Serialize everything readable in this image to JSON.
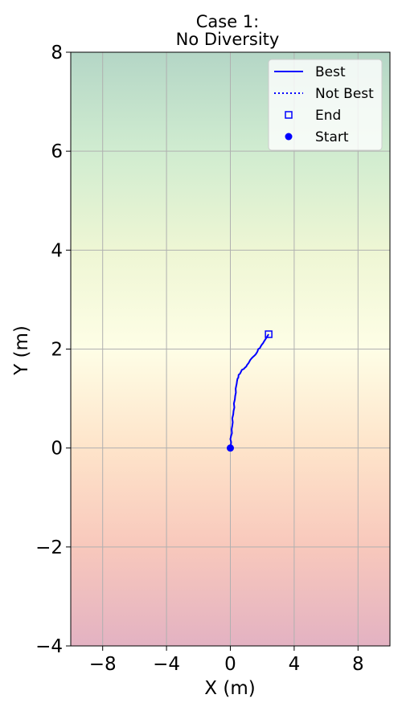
{
  "chart_data": {
    "type": "line",
    "title": [
      "Case 1:",
      "No Diversity"
    ],
    "xlabel": "X (m)",
    "ylabel": "Y (m)",
    "xlim": [
      -10,
      10
    ],
    "ylim": [
      -4,
      8
    ],
    "xticks": [
      -8,
      -4,
      0,
      4,
      8
    ],
    "xtick_labels": [
      "−8",
      "−4",
      "0",
      "4",
      "8"
    ],
    "yticks": [
      -4,
      -2,
      0,
      2,
      4,
      6,
      8
    ],
    "ytick_labels": [
      "−4",
      "−2",
      "0",
      "2",
      "4",
      "6",
      "8"
    ],
    "grid": true,
    "background_gradient": {
      "description": "vertical colormap, low Y red/pink to high Y green",
      "stops": [
        {
          "y": -4,
          "color": "#e3b2c2"
        },
        {
          "y": -2,
          "color": "#f8c8bc"
        },
        {
          "y": 0,
          "color": "#fee4ca"
        },
        {
          "y": 2,
          "color": "#fefee6"
        },
        {
          "y": 4,
          "color": "#eef6d4"
        },
        {
          "y": 6,
          "color": "#d0ecd0"
        },
        {
          "y": 8,
          "color": "#b4d6c6"
        }
      ]
    },
    "legend": {
      "placement": "top-right",
      "entries": [
        {
          "label": "Best",
          "style": "solid-line"
        },
        {
          "label": "Not Best",
          "style": "dotted-line"
        },
        {
          "label": "End",
          "style": "open-square"
        },
        {
          "label": "Start",
          "style": "filled-circle"
        }
      ]
    },
    "series": [
      {
        "name": "Best",
        "color": "#0000ff",
        "style": "solid",
        "x": [
          0.0,
          0.03,
          0.05,
          0.0,
          0.05,
          0.1,
          0.08,
          0.12,
          0.15,
          0.12,
          0.18,
          0.2,
          0.25,
          0.22,
          0.28,
          0.3,
          0.35,
          0.33,
          0.38,
          0.4,
          0.42,
          0.45,
          0.5,
          0.52,
          0.6,
          0.68,
          0.72,
          0.85,
          0.9,
          1.0,
          1.05,
          1.15,
          1.25,
          1.35,
          1.45,
          1.55,
          1.6,
          1.7,
          1.75,
          1.85,
          1.9,
          1.95,
          2.0,
          2.05,
          2.1,
          2.2,
          2.3,
          2.4
        ],
        "y": [
          0.0,
          0.05,
          0.12,
          0.18,
          0.25,
          0.3,
          0.38,
          0.45,
          0.52,
          0.6,
          0.68,
          0.75,
          0.82,
          0.9,
          0.98,
          1.05,
          1.12,
          1.2,
          1.27,
          1.3,
          1.35,
          1.4,
          1.42,
          1.48,
          1.5,
          1.55,
          1.58,
          1.6,
          1.62,
          1.65,
          1.68,
          1.72,
          1.78,
          1.82,
          1.85,
          1.88,
          1.9,
          1.95,
          2.0,
          2.02,
          2.05,
          2.08,
          2.1,
          2.12,
          2.15,
          2.2,
          2.25,
          2.3
        ]
      }
    ],
    "markers": {
      "start": {
        "label": "Start",
        "x": 0.0,
        "y": 0.0,
        "color": "#0000ff"
      },
      "end": {
        "label": "End",
        "x": 2.4,
        "y": 2.3,
        "color": "#0000ff"
      }
    }
  }
}
